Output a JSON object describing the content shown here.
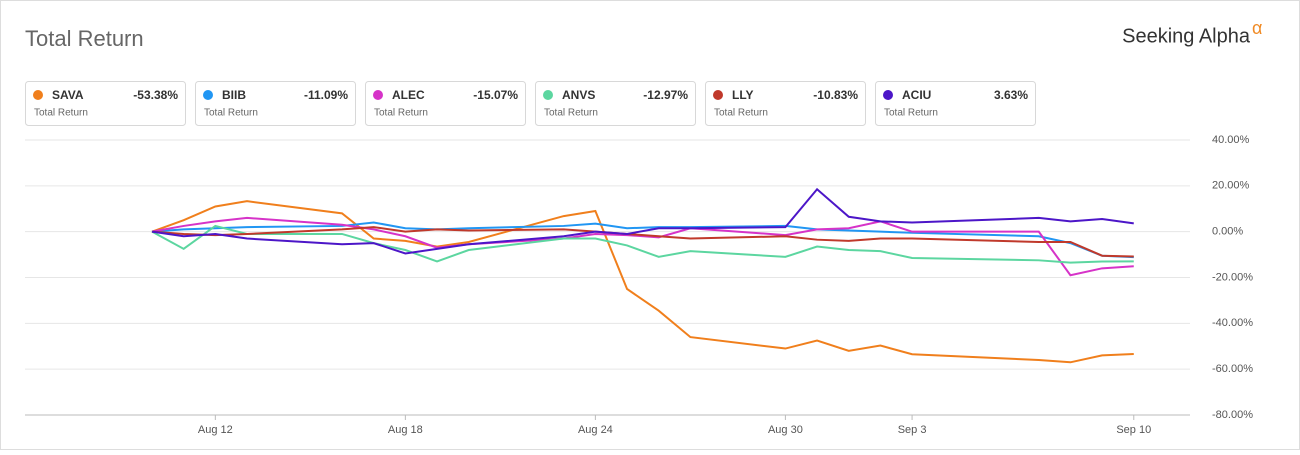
{
  "chart_data": {
    "type": "line",
    "title": "Total Return",
    "logo": "Seeking Alpha",
    "logo_mark": "α",
    "legend_subtitle": "Total Return",
    "x": [
      "Aug 10",
      "Aug 11",
      "Aug 12",
      "Aug 13",
      "Aug 16",
      "Aug 17",
      "Aug 18",
      "Aug 19",
      "Aug 20",
      "Aug 23",
      "Aug 24",
      "Aug 25",
      "Aug 26",
      "Aug 27",
      "Aug 30",
      "Aug 31",
      "Sep 1",
      "Sep 2",
      "Sep 3",
      "Sep 7",
      "Sep 8",
      "Sep 9",
      "Sep 10"
    ],
    "xticks": [
      "Aug 12",
      "Aug 18",
      "Aug 24",
      "Aug 30",
      "Sep 3",
      "Sep 10"
    ],
    "ylim": [
      -80,
      40
    ],
    "yticks": [
      {
        "value": -80,
        "label": "-80.00%"
      },
      {
        "value": -60,
        "label": "-60.00%"
      },
      {
        "value": -40,
        "label": "-40.00%"
      },
      {
        "value": -20,
        "label": "-20.00%"
      },
      {
        "value": 0,
        "label": "0.00%"
      },
      {
        "value": 20,
        "label": "20.00%"
      },
      {
        "value": 40,
        "label": "40.00%"
      }
    ],
    "grid": true,
    "series": [
      {
        "name": "SAVA",
        "color": "#f07f1c",
        "values": [
          0,
          5,
          11,
          13.3,
          8,
          -3,
          -4,
          -6.5,
          -4.5,
          6.8,
          9,
          -25,
          -34.5,
          -46,
          -51,
          -47.5,
          -52,
          -49.7,
          -53.5,
          -56,
          -57,
          -54,
          -53.38
        ],
        "value_labels": [
          null,
          null,
          null,
          null,
          null,
          null,
          null,
          null,
          null,
          null,
          null,
          null,
          null,
          null,
          null,
          null,
          null,
          null,
          null,
          null,
          null,
          null,
          "-53.38%"
        ]
      },
      {
        "name": "BIIB",
        "color": "#2196f3",
        "values": [
          0,
          1,
          1.5,
          2,
          2.5,
          4,
          1.5,
          1,
          1.5,
          2.5,
          3.5,
          1.5,
          2,
          2,
          2.5,
          1,
          0.5,
          0,
          -0.5,
          -2,
          -5,
          -10.5,
          -11.09
        ],
        "value_labels": [
          null,
          null,
          null,
          null,
          null,
          null,
          null,
          null,
          null,
          null,
          null,
          null,
          null,
          null,
          null,
          null,
          null,
          null,
          null,
          null,
          null,
          null,
          "-11.09%"
        ]
      },
      {
        "name": "ALEC",
        "color": "#d633c8",
        "values": [
          0,
          2.5,
          4.5,
          6,
          3,
          1,
          -2,
          -7,
          -5.5,
          -3,
          -1,
          -1.5,
          -2.5,
          1.5,
          -1.5,
          1,
          1.5,
          4.5,
          0,
          0,
          -19,
          -16,
          -15.07
        ],
        "value_labels": [
          null,
          null,
          null,
          null,
          null,
          null,
          null,
          null,
          null,
          null,
          null,
          null,
          null,
          null,
          null,
          null,
          null,
          null,
          null,
          null,
          null,
          null,
          "-15.07%"
        ]
      },
      {
        "name": "ANVS",
        "color": "#5cd6a0",
        "values": [
          0,
          -7.5,
          2.5,
          -1,
          -1,
          -5,
          -8,
          -13,
          -8,
          -3,
          -3,
          -6,
          -11,
          -8.5,
          -11,
          -6.5,
          -8,
          -8.5,
          -11.5,
          -12.5,
          -13.5,
          -13,
          -12.97
        ],
        "value_labels": [
          null,
          null,
          null,
          null,
          null,
          null,
          null,
          null,
          null,
          null,
          null,
          null,
          null,
          null,
          null,
          null,
          null,
          null,
          null,
          null,
          null,
          null,
          "-12.97%"
        ]
      },
      {
        "name": "LLY",
        "color": "#c0392b",
        "values": [
          0,
          -1,
          -1.5,
          -1,
          1,
          2,
          0,
          1,
          0.5,
          1,
          0,
          -1,
          -2,
          -3,
          -2,
          -3.5,
          -4,
          -3,
          -3,
          -4.5,
          -4.5,
          -10.5,
          -10.83
        ],
        "value_labels": [
          null,
          null,
          null,
          null,
          null,
          null,
          null,
          null,
          null,
          null,
          null,
          null,
          null,
          null,
          null,
          null,
          null,
          null,
          null,
          null,
          null,
          null,
          "-10.83%"
        ]
      },
      {
        "name": "ACIU",
        "color": "#4c16c8",
        "values": [
          0,
          -2,
          -1,
          -3,
          -5.5,
          -5,
          -9.5,
          -7.5,
          -5.5,
          -2,
          0,
          -1,
          1.5,
          1.5,
          2,
          18.5,
          6.5,
          4.5,
          4,
          6,
          4.5,
          5.5,
          3.63
        ],
        "value_labels": [
          null,
          null,
          null,
          null,
          null,
          null,
          null,
          null,
          null,
          null,
          null,
          null,
          null,
          null,
          null,
          null,
          null,
          null,
          null,
          null,
          null,
          null,
          "3.63%"
        ]
      }
    ]
  }
}
